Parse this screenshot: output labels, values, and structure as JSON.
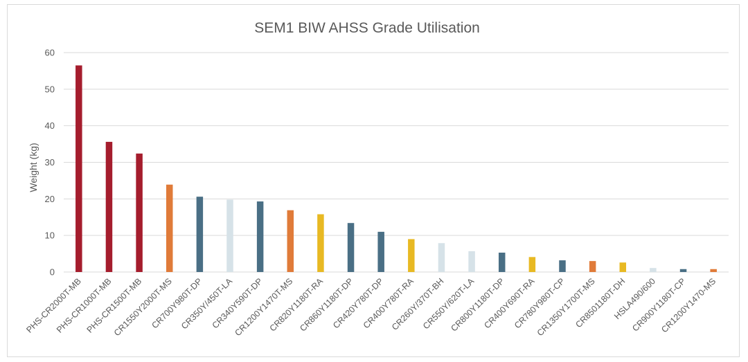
{
  "chart_data": {
    "type": "bar",
    "title": "SEM1 BIW AHSS Grade Utilisation",
    "xlabel": "",
    "ylabel": "Weight (kg)",
    "ylim": [
      0,
      60
    ],
    "yticks": [
      0,
      10,
      20,
      30,
      40,
      50,
      60
    ],
    "grid": true,
    "legend": "none",
    "categories": [
      "PHS-CR2000T-MB",
      "PHS-CR1000T-MB",
      "PHS-CR1500T-MB",
      "CR1550Y2000T-MS",
      "CR700Y980T-DP",
      "CR350Y/450T-LA",
      "CR340Y590T-DP",
      "CR1200Y1470T-MS",
      "CR820Y1180T-RA",
      "CR860Y1180T-DP",
      "CR420Y780T-DP",
      "CR400Y780T-RA",
      "CR260Y/370T-BH",
      "CR550Y/620T-LA",
      "CR800Y1180T-DP",
      "CR400Y690T-RA",
      "CR780Y980T-CP",
      "CR1350Y1700T-MS",
      "CR8501180T-DH",
      "HSLA490/600",
      "CR900Y1180T-CP",
      "CR1200Y1470-MS"
    ],
    "values": [
      56.5,
      35.6,
      32.4,
      23.9,
      20.6,
      19.8,
      19.3,
      16.9,
      15.8,
      13.4,
      11.0,
      9.0,
      7.9,
      5.7,
      5.3,
      4.1,
      3.2,
      3.0,
      2.6,
      1.1,
      0.8,
      0.8
    ],
    "colors": [
      "#a51d2d",
      "#a51d2d",
      "#a51d2d",
      "#e07b39",
      "#4a6f85",
      "#d6e2e8",
      "#4a6f85",
      "#e07b39",
      "#e8b923",
      "#4a6f85",
      "#4a6f85",
      "#e8b923",
      "#d6e2e8",
      "#d6e2e8",
      "#4a6f85",
      "#e8b923",
      "#4a6f85",
      "#e07b39",
      "#e8b923",
      "#d6e2e8",
      "#4a6f85",
      "#e07b39"
    ]
  }
}
